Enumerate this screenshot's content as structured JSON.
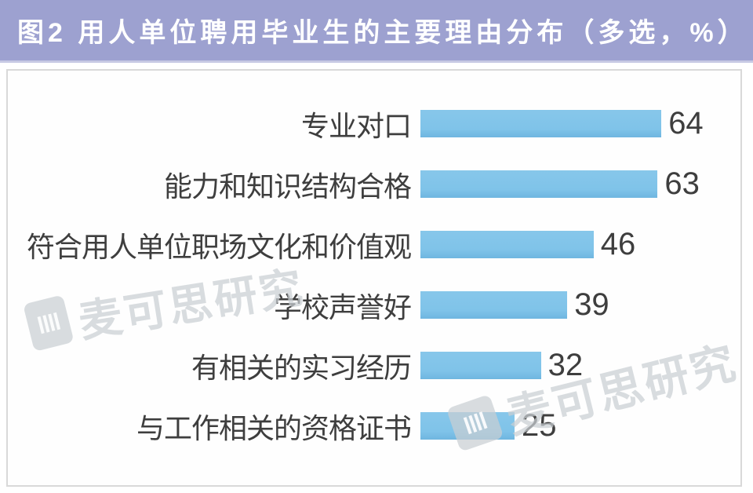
{
  "header": {
    "title": "图2 用人单位聘用毕业生的主要理由分布（多选，%）",
    "bg_color": "#9da1d0",
    "text_color": "#ffffff"
  },
  "chart_data": {
    "type": "bar",
    "orientation": "horizontal",
    "title": "图2 用人单位聘用毕业生的主要理由分布（多选，%）",
    "unit": "%",
    "categories": [
      "专业对口",
      "能力和知识结构合格",
      "符合用人单位职场文化和价值观",
      "学校声誉好",
      "有相关的实习经历",
      "与工作相关的资格证书"
    ],
    "values": [
      64,
      63,
      46,
      39,
      32,
      25
    ],
    "xlim": [
      0,
      70
    ],
    "grid": false,
    "legend": "none",
    "data_labels": "at-bar-end",
    "bar_color": "#7fc3e9",
    "text_color": "#3e3e3e"
  },
  "watermark": {
    "text": "麦可思研究",
    "logo": "mycos-logo",
    "color": "#c9ced3"
  }
}
